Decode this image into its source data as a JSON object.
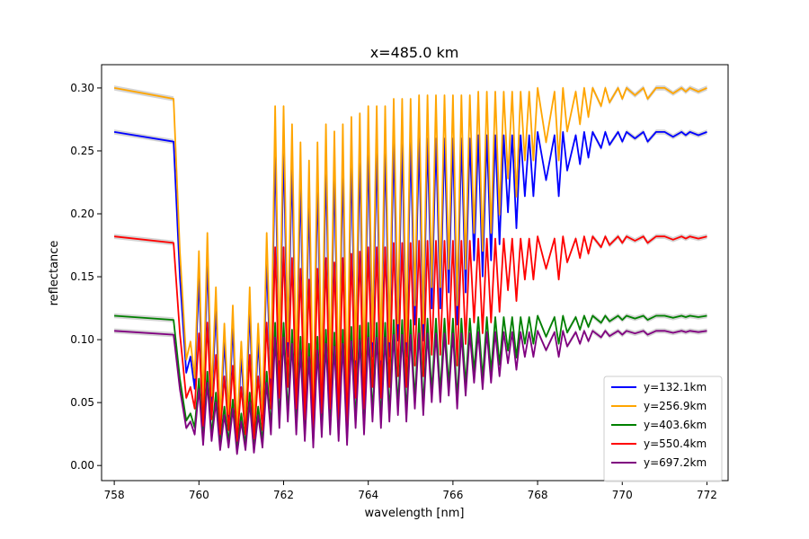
{
  "chart_data": {
    "type": "line",
    "title": "x=485.0 km",
    "xlabel": "wavelength [nm]",
    "ylabel": "reflectance",
    "xlim": [
      757.7,
      772.5
    ],
    "ylim": [
      -0.012,
      0.3185
    ],
    "xticks": [
      758,
      760,
      762,
      764,
      766,
      768,
      770,
      772
    ],
    "xtick_labels": [
      "758",
      "760",
      "762",
      "764",
      "766",
      "768",
      "770",
      "772"
    ],
    "yticks": [
      0.0,
      0.05,
      0.1,
      0.15,
      0.2,
      0.25,
      0.3
    ],
    "ytick_labels": [
      "0.00",
      "0.05",
      "0.10",
      "0.15",
      "0.20",
      "0.25",
      "0.30"
    ],
    "grid": false,
    "legend_position": "lower-right",
    "uncertainty_band_color": "#b0b0b0",
    "series": [
      {
        "name": "y=132.1km",
        "color": "#0000ff",
        "baseline": 0.265,
        "floor": 0.01
      },
      {
        "name": "y=256.9km",
        "color": "#ffa500",
        "baseline": 0.3,
        "floor": 0.012
      },
      {
        "name": "y=403.6km",
        "color": "#008000",
        "baseline": 0.119,
        "floor": 0.008
      },
      {
        "name": "y=550.4km",
        "color": "#ff0000",
        "baseline": 0.182,
        "floor": 0.011
      },
      {
        "name": "y=697.2km",
        "color": "#800080",
        "baseline": 0.107,
        "floor": 0.004
      }
    ],
    "band_shape": {
      "x": [
        758.0,
        759.4,
        759.55,
        759.7,
        759.8,
        759.9,
        760.0,
        760.1,
        760.2,
        760.3,
        760.4,
        760.5,
        760.6,
        760.7,
        760.8,
        760.9,
        761.0,
        761.1,
        761.2,
        761.3,
        761.4,
        761.5,
        761.6,
        761.7,
        761.8,
        761.9,
        762.0,
        762.1,
        762.2,
        762.3,
        762.4,
        762.5,
        762.6,
        762.7,
        762.8,
        762.9,
        763.0,
        763.1,
        763.2,
        763.3,
        763.4,
        763.5,
        763.6,
        763.7,
        763.8,
        763.9,
        764.0,
        764.1,
        764.2,
        764.3,
        764.4,
        764.5,
        764.6,
        764.7,
        764.8,
        764.9,
        765.0,
        765.1,
        765.2,
        765.3,
        765.4,
        765.5,
        765.6,
        765.7,
        765.8,
        765.9,
        766.0,
        766.1,
        766.2,
        766.3,
        766.4,
        766.5,
        766.6,
        766.7,
        766.8,
        766.9,
        767.0,
        767.1,
        767.2,
        767.3,
        767.4,
        767.5,
        767.6,
        767.7,
        767.8,
        767.9,
        768.0,
        768.2,
        768.4,
        768.5,
        768.6,
        768.7,
        768.9,
        769.0,
        769.1,
        769.2,
        769.3,
        769.5,
        769.6,
        769.7,
        769.9,
        770.0,
        770.1,
        770.3,
        770.5,
        770.6,
        770.8,
        771.0,
        771.2,
        771.4,
        771.5,
        771.6,
        771.8,
        772.0
      ],
      "f": [
        1.0,
        0.97,
        0.55,
        0.25,
        0.3,
        0.2,
        0.55,
        0.12,
        0.6,
        0.15,
        0.45,
        0.08,
        0.35,
        0.1,
        0.4,
        0.05,
        0.3,
        0.08,
        0.45,
        0.06,
        0.35,
        0.1,
        0.6,
        0.2,
        0.95,
        0.25,
        0.95,
        0.3,
        0.9,
        0.2,
        0.85,
        0.15,
        0.8,
        0.1,
        0.85,
        0.18,
        0.9,
        0.2,
        0.88,
        0.15,
        0.9,
        0.12,
        0.92,
        0.25,
        0.93,
        0.2,
        0.95,
        0.3,
        0.95,
        0.25,
        0.95,
        0.3,
        0.97,
        0.35,
        0.97,
        0.3,
        0.97,
        0.4,
        0.98,
        0.35,
        0.98,
        0.45,
        0.98,
        0.45,
        0.98,
        0.5,
        0.98,
        0.4,
        0.98,
        0.5,
        0.98,
        0.6,
        0.99,
        0.55,
        0.99,
        0.6,
        0.99,
        0.65,
        0.99,
        0.75,
        0.99,
        0.7,
        0.99,
        0.8,
        0.99,
        0.8,
        1.0,
        0.85,
        0.99,
        0.8,
        1.0,
        0.88,
        0.99,
        0.9,
        1.0,
        0.92,
        1.0,
        0.95,
        1.0,
        0.96,
        1.0,
        0.97,
        1.0,
        0.98,
        1.0,
        0.97,
        1.0,
        1.0,
        0.985,
        1.0,
        0.99,
        1.0,
        0.99,
        1.0
      ]
    }
  }
}
